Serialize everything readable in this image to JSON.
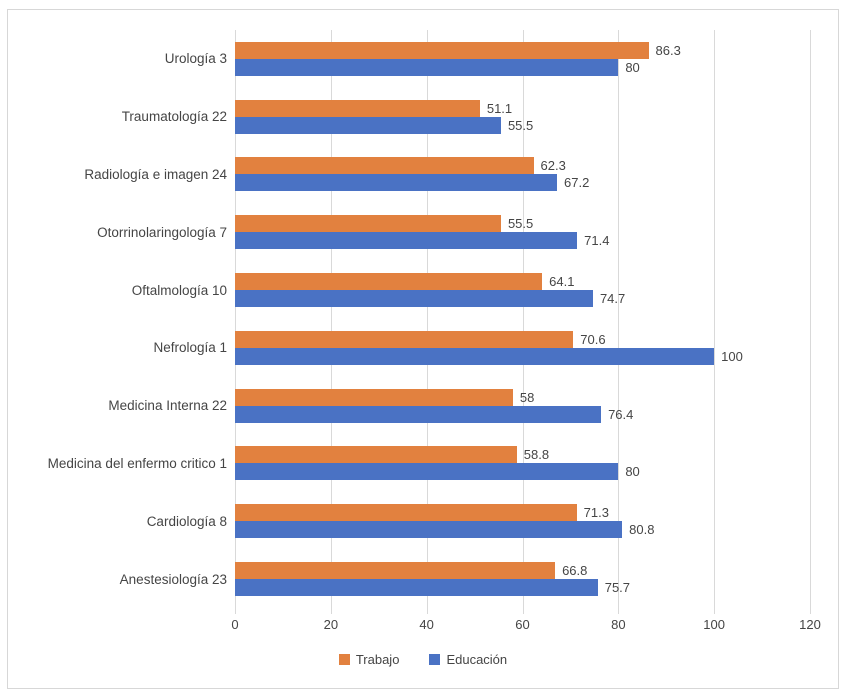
{
  "chart_data": {
    "type": "bar",
    "orientation": "horizontal",
    "title": "",
    "categories": [
      "Urología 3",
      "Traumatología 22",
      "Radiología e imagen 24",
      "Otorrinolaringología 7",
      "Oftalmología 10",
      "Nefrología 1",
      "Medicina Interna 22",
      "Medicina del enfermo critico 1",
      "Cardiología 8",
      "Anestesiología 23"
    ],
    "series": [
      {
        "name": "Trabajo",
        "color": "#e2813f",
        "values": [
          86.3,
          51.1,
          62.3,
          55.5,
          64.1,
          70.6,
          58,
          58.8,
          71.3,
          66.8
        ]
      },
      {
        "name": "Educación",
        "color": "#4a72c4",
        "values": [
          80,
          55.5,
          67.2,
          71.4,
          74.7,
          100,
          76.4,
          80,
          80.8,
          75.7
        ]
      }
    ],
    "xlim": [
      0,
      120
    ],
    "x_ticks": [
      0,
      20,
      40,
      60,
      80,
      100,
      120
    ],
    "grid": true,
    "data_labels": true,
    "legend_position": "bottom",
    "gridline_color": "#d9d9d9",
    "text_color": "#454545"
  }
}
